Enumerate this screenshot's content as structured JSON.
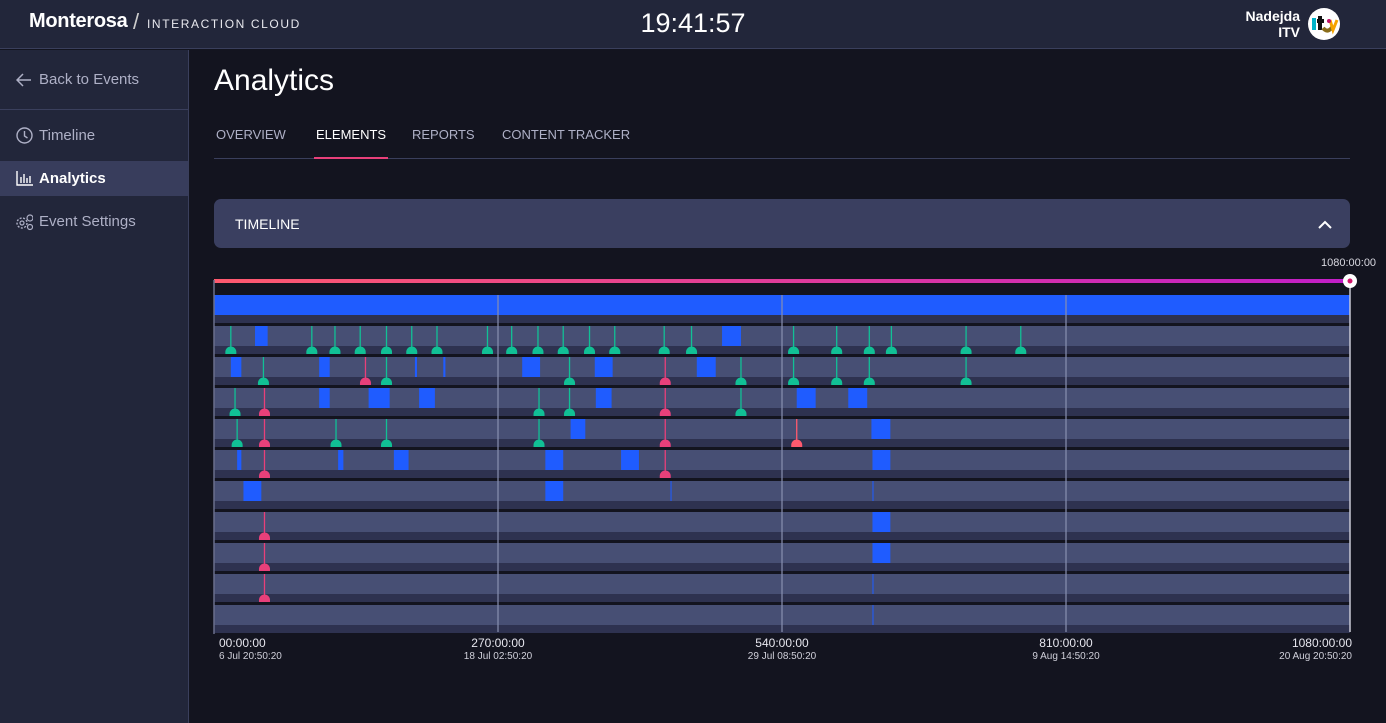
{
  "header": {
    "brand": "Monterosa",
    "divider": "/",
    "product": "INTERACTION CLOUD",
    "clock": "19:41:57",
    "user_name": "Nadejda",
    "user_org": "ITV",
    "avatar_icon": "itv-logo-icon"
  },
  "sidebar": {
    "back": "Back to Events",
    "items": [
      {
        "label": "Timeline",
        "icon": "clock-icon"
      },
      {
        "label": "Analytics",
        "icon": "bar-chart-icon",
        "active": true
      },
      {
        "label": "Event Settings",
        "icon": "gears-icon"
      }
    ]
  },
  "main": {
    "title": "Analytics",
    "tabs": [
      {
        "label": "OVERVIEW"
      },
      {
        "label": "ELEMENTS",
        "active": true
      },
      {
        "label": "REPORTS"
      },
      {
        "label": "CONTENT TRACKER"
      }
    ],
    "panel": {
      "title": "TIMELINE",
      "expanded": true
    }
  },
  "timeline": {
    "max_hours": 1080,
    "end_label": "1080:00:00",
    "colors": {
      "block": "#1f5cff",
      "green": "#11c095",
      "pink": "#e8407a",
      "red": "#ff5a6e",
      "row": "#474f74",
      "row_dark": "#2e3250"
    },
    "ticks": [
      {
        "hours": 0,
        "label": "00:00:00",
        "date": "6 Jul 20:50:20"
      },
      {
        "hours": 270,
        "label": "270:00:00",
        "date": "18 Jul 02:50:20"
      },
      {
        "hours": 540,
        "label": "540:00:00",
        "date": "29 Jul 08:50:20"
      },
      {
        "hours": 810,
        "label": "810:00:00",
        "date": "9 Aug 14:50:20"
      },
      {
        "hours": 1080,
        "label": "1080:00:00",
        "date": "20 Aug 20:50:20"
      }
    ],
    "rows": [
      {
        "blocks": [
          [
            0,
            1080
          ]
        ],
        "markers": []
      },
      {
        "blocks": [
          [
            39,
            51
          ],
          [
            483,
            501
          ]
        ],
        "markers": [
          [
            16,
            "green"
          ],
          [
            93,
            "green"
          ],
          [
            115,
            "green"
          ],
          [
            139,
            "green"
          ],
          [
            164,
            "green"
          ],
          [
            188,
            "green"
          ],
          [
            212,
            "green"
          ],
          [
            260,
            "green"
          ],
          [
            283,
            "green"
          ],
          [
            308,
            "green"
          ],
          [
            332,
            "green"
          ],
          [
            357,
            "green"
          ],
          [
            381,
            "green"
          ],
          [
            428,
            "green"
          ],
          [
            454,
            "green"
          ],
          [
            551,
            "green"
          ],
          [
            592,
            "green"
          ],
          [
            623,
            "green"
          ],
          [
            644,
            "green"
          ],
          [
            715,
            "green"
          ],
          [
            767,
            "green"
          ]
        ]
      },
      {
        "blocks": [
          [
            16,
            26
          ],
          [
            100,
            110
          ],
          [
            191,
            193
          ],
          [
            218,
            220
          ],
          [
            293,
            310
          ],
          [
            362,
            379
          ],
          [
            459,
            477
          ]
        ],
        "markers": [
          [
            47,
            "green"
          ],
          [
            144,
            "pink"
          ],
          [
            164,
            "green"
          ],
          [
            338,
            "green"
          ],
          [
            429,
            "pink"
          ],
          [
            501,
            "green"
          ],
          [
            551,
            "green"
          ],
          [
            592,
            "green"
          ],
          [
            623,
            "green"
          ],
          [
            715,
            "green"
          ]
        ]
      },
      {
        "blocks": [
          [
            100,
            110
          ],
          [
            147,
            167
          ],
          [
            195,
            210
          ],
          [
            363,
            378
          ],
          [
            554,
            572
          ],
          [
            603,
            621
          ]
        ],
        "markers": [
          [
            20,
            "green"
          ],
          [
            48,
            "pink"
          ],
          [
            309,
            "green"
          ],
          [
            338,
            "green"
          ],
          [
            429,
            "pink"
          ],
          [
            501,
            "green"
          ]
        ]
      },
      {
        "blocks": [
          [
            339,
            353
          ],
          [
            625,
            643
          ]
        ],
        "markers": [
          [
            22,
            "green"
          ],
          [
            48,
            "pink"
          ],
          [
            116,
            "green"
          ],
          [
            164,
            "green"
          ],
          [
            309,
            "green"
          ],
          [
            429,
            "pink"
          ],
          [
            554,
            "red"
          ]
        ]
      },
      {
        "blocks": [
          [
            22,
            26
          ],
          [
            118,
            123
          ],
          [
            171,
            185
          ],
          [
            315,
            332
          ],
          [
            387,
            404
          ],
          [
            626,
            643
          ]
        ],
        "markers": [
          [
            48,
            "pink"
          ],
          [
            429,
            "pink"
          ]
        ]
      },
      {
        "blocks": [
          [
            28,
            45
          ],
          [
            315,
            332
          ],
          [
            434,
            435
          ],
          [
            626,
            627
          ]
        ],
        "markers": []
      },
      {
        "blocks": [
          [
            626,
            643
          ]
        ],
        "markers": [
          [
            48,
            "pink"
          ]
        ]
      },
      {
        "blocks": [
          [
            626,
            643
          ]
        ],
        "markers": [
          [
            48,
            "pink"
          ]
        ]
      },
      {
        "blocks": [
          [
            626,
            627
          ]
        ],
        "markers": [
          [
            48,
            "pink"
          ]
        ]
      },
      {
        "blocks": [
          [
            626,
            627
          ]
        ],
        "markers": []
      }
    ]
  }
}
